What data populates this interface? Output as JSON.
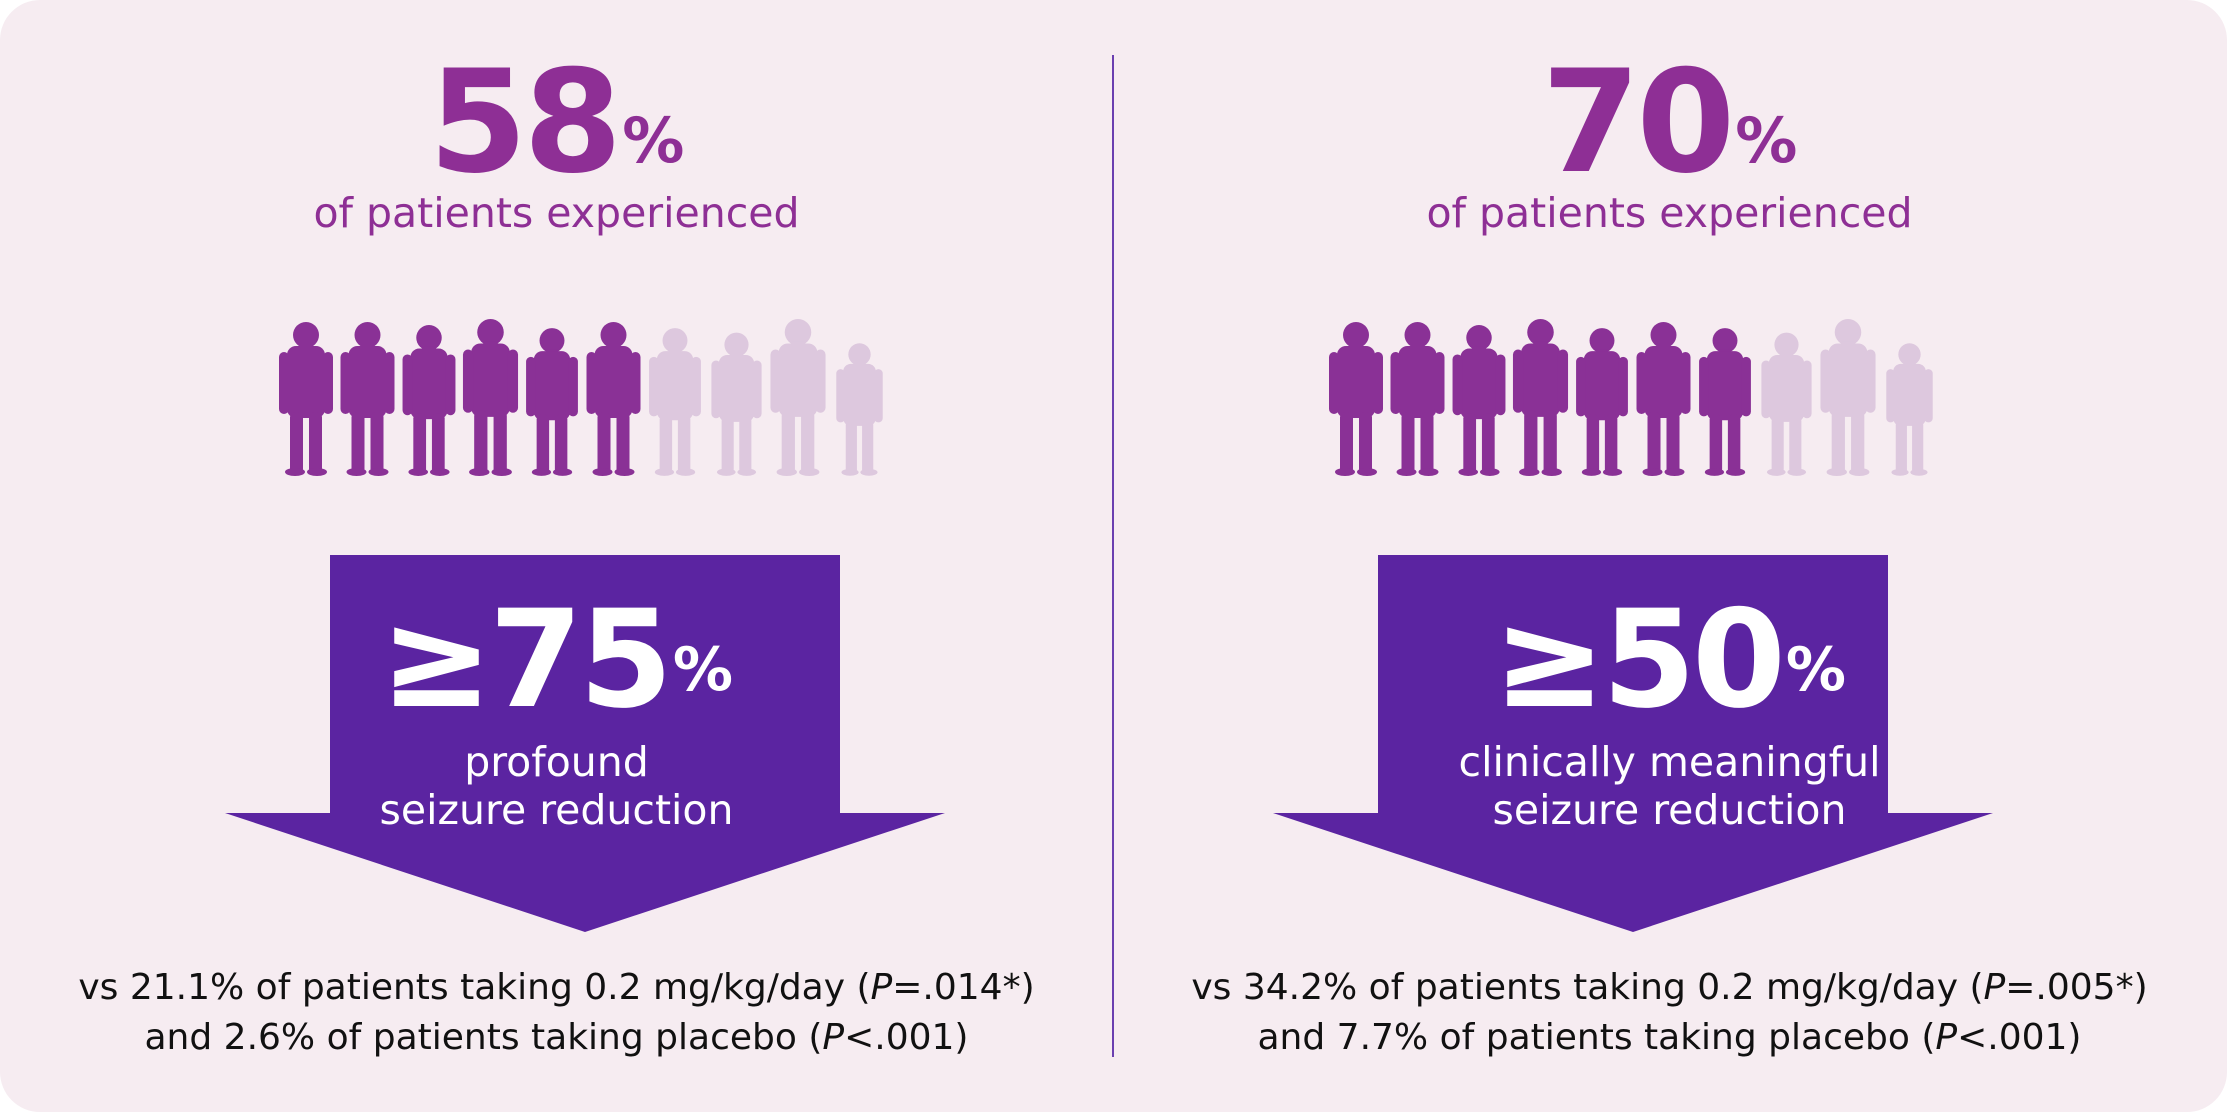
{
  "colors": {
    "background": "#f6ecf1",
    "accent": "#8e2f95",
    "arrow": "#5b24a1",
    "figure_active": "#8a3196",
    "figure_faded": "#ddc8de",
    "divider": "#6b3fb0"
  },
  "panels": [
    {
      "percent_value": "58",
      "percent_sign": "%",
      "subtitle": "of patients experienced",
      "figures_highlighted": 6,
      "figures_total": 10,
      "figure_icon": "child-silhouette-icon",
      "threshold_value": "≥75",
      "threshold_sign": "%",
      "label_line1": "profound",
      "label_line2": "seizure reduction",
      "footnote_line1": {
        "prefix": "vs 21.1% of patients taking 0.2 mg/kg/day (",
        "p_symbol": "P",
        "p_value": "=.014*)"
      },
      "footnote_line2": {
        "prefix": "and 2.6% of patients taking placebo (",
        "p_symbol": "P",
        "p_value": "<.001)"
      }
    },
    {
      "percent_value": "70",
      "percent_sign": "%",
      "subtitle": "of patients experienced",
      "figures_highlighted": 7,
      "figures_total": 10,
      "figure_icon": "child-silhouette-icon",
      "threshold_value": "≥50",
      "threshold_sign": "%",
      "label_line1": "clinically meaningful",
      "label_line2": "seizure reduction",
      "footnote_line1": {
        "prefix": "vs 34.2% of patients taking 0.2 mg/kg/day (",
        "p_symbol": "P",
        "p_value": "=.005*)"
      },
      "footnote_line2": {
        "prefix": "and 7.7% of patients taking placebo (",
        "p_symbol": "P",
        "p_value": "<.001)"
      }
    }
  ]
}
